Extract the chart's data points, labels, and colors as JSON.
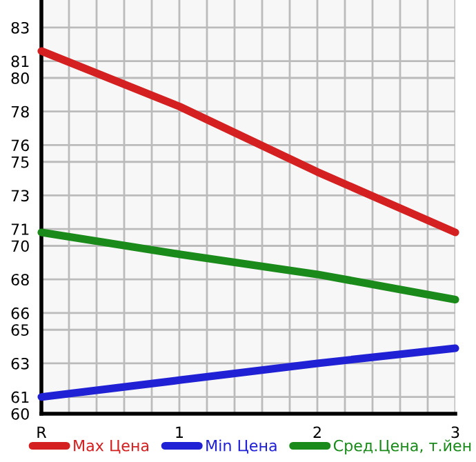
{
  "chart_data": {
    "type": "line",
    "categories": [
      "R",
      "1",
      "2",
      "3"
    ],
    "series": [
      {
        "name": "Max Цена",
        "color": "#d42020",
        "values": [
          81.6,
          78.3,
          74.4,
          70.8
        ]
      },
      {
        "name": "Min Цена",
        "color": "#2020d4",
        "values": [
          61.0,
          62.0,
          63.0,
          63.9
        ]
      },
      {
        "name": "Сред.Цена, т.йен",
        "color": "#1a8a1a",
        "values": [
          70.8,
          69.5,
          68.3,
          66.8
        ]
      }
    ],
    "ylim": [
      60,
      84.64
    ],
    "yticks": [
      60,
      61,
      63,
      65,
      66,
      68,
      70,
      71,
      73,
      75,
      76,
      78,
      80,
      81,
      83
    ],
    "grid": true,
    "legend": "bottom",
    "marker": "none",
    "line_style": "solid"
  }
}
